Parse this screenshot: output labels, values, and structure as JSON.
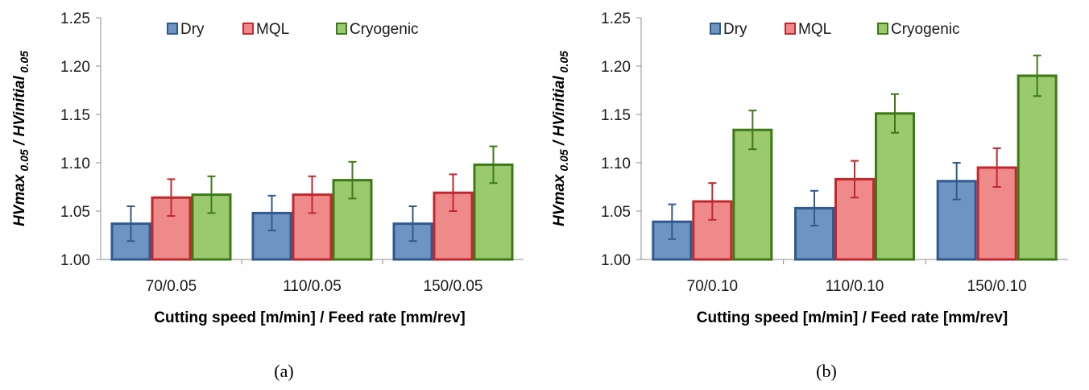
{
  "colors": {
    "Dry": {
      "fill": "#6f94c2",
      "stroke": "#2f5a8f"
    },
    "MQL": {
      "fill": "#ef8a8a",
      "stroke": "#c0282d"
    },
    "Cryogenic": {
      "fill": "#9bc96d",
      "stroke": "#3d7a17"
    }
  },
  "chart_data": [
    {
      "type": "bar",
      "panel_label": "(a)",
      "categories": [
        "70/0.05",
        "110/0.05",
        "150/0.05"
      ],
      "series": [
        {
          "name": "Dry",
          "values": [
            1.037,
            1.048,
            1.037
          ],
          "errors": [
            0.018,
            0.018,
            0.018
          ]
        },
        {
          "name": "MQL",
          "values": [
            1.064,
            1.067,
            1.069
          ],
          "errors": [
            0.019,
            0.019,
            0.019
          ]
        },
        {
          "name": "Cryogenic",
          "values": [
            1.067,
            1.082,
            1.098
          ],
          "errors": [
            0.019,
            0.019,
            0.019
          ]
        }
      ],
      "ylim": [
        1.0,
        1.25
      ],
      "yticks": [
        "1.00",
        "1.05",
        "1.10",
        "1.15",
        "1.20",
        "1.25"
      ],
      "xlabel": "Cutting speed [m/min] / Feed rate [mm/rev]",
      "ylabel_main": "HVmax",
      "ylabel_sub1": "0.05",
      "ylabel_mid": " / HVinitial",
      "ylabel_sub2": "0.05",
      "legend_position": "top"
    },
    {
      "type": "bar",
      "panel_label": "(b)",
      "categories": [
        "70/0.10",
        "110/0.10",
        "150/0.10"
      ],
      "series": [
        {
          "name": "Dry",
          "values": [
            1.039,
            1.053,
            1.081
          ],
          "errors": [
            0.018,
            0.018,
            0.019
          ]
        },
        {
          "name": "MQL",
          "values": [
            1.06,
            1.083,
            1.095
          ],
          "errors": [
            0.019,
            0.019,
            0.02
          ]
        },
        {
          "name": "Cryogenic",
          "values": [
            1.134,
            1.151,
            1.19
          ],
          "errors": [
            0.02,
            0.02,
            0.021
          ]
        }
      ],
      "ylim": [
        1.0,
        1.25
      ],
      "yticks": [
        "1.00",
        "1.05",
        "1.10",
        "1.15",
        "1.20",
        "1.25"
      ],
      "xlabel": "Cutting speed [m/min] / Feed rate [mm/rev]",
      "ylabel_main": "HVmax",
      "ylabel_sub1": "0.05",
      "ylabel_mid": " / HVinitial",
      "ylabel_sub2": "0.05",
      "legend_position": "top"
    }
  ]
}
